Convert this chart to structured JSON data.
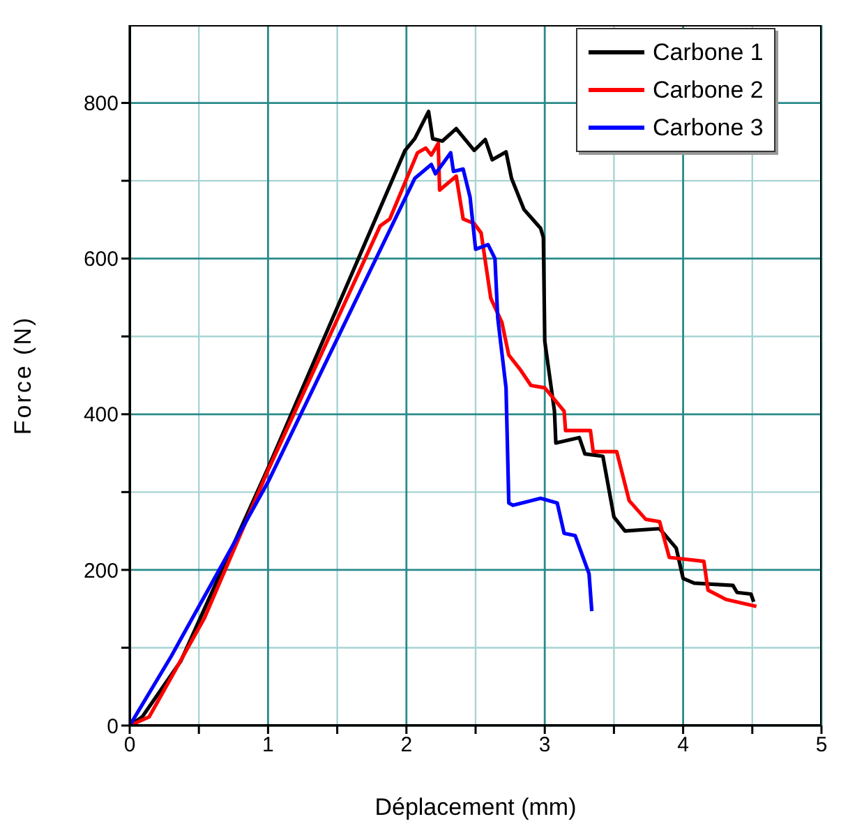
{
  "chart_data": {
    "type": "line",
    "xlabel": "Déplacement (mm)",
    "ylabel": "Force (N)",
    "xlim": [
      0,
      5
    ],
    "ylim": [
      0,
      900
    ],
    "xticks": [
      0,
      {
        "value": 0.5,
        "label": null
      },
      1,
      {
        "value": 1.5,
        "label": null
      },
      2,
      {
        "value": 2.5,
        "label": null
      },
      3,
      {
        "value": 3.5,
        "label": null
      },
      4,
      {
        "value": 4.5,
        "label": null
      },
      5
    ],
    "yticks": [
      0,
      {
        "value": 100,
        "label": null
      },
      200,
      {
        "value": 300,
        "label": null
      },
      400,
      {
        "value": 500,
        "label": null
      },
      600,
      {
        "value": 700,
        "label": null
      },
      800
    ],
    "grid": true,
    "legend": "top right",
    "marker": "none",
    "line_style": "solid",
    "series": [
      {
        "name": "Carbone 1",
        "color": "#000000",
        "x": [
          0,
          0.09,
          0.37,
          1.0,
          1.99,
          2.06,
          2.16,
          2.19,
          2.26,
          2.36,
          2.42,
          2.49,
          2.57,
          2.62,
          2.72,
          2.76,
          2.85,
          2.97,
          2.99,
          3.0,
          3.07,
          3.08,
          3.25,
          3.29,
          3.42,
          3.5,
          3.58,
          3.83,
          3.95,
          4.0,
          4.08,
          4.36,
          4.39,
          4.49,
          4.51
        ],
        "values": [
          0,
          11,
          83,
          331,
          739,
          754,
          789,
          754,
          751,
          767,
          754,
          739,
          753,
          727,
          737,
          703,
          663,
          639,
          627,
          494,
          404,
          363,
          370,
          349,
          346,
          268,
          250,
          253,
          228,
          189,
          183,
          180,
          171,
          169,
          159
        ]
      },
      {
        "name": "Carbone 2",
        "color": "#ff0000",
        "x": [
          0,
          0.14,
          0.54,
          1.0,
          1.81,
          1.88,
          2.08,
          2.14,
          2.18,
          2.23,
          2.24,
          2.36,
          2.41,
          2.49,
          2.54,
          2.61,
          2.69,
          2.74,
          2.82,
          2.9,
          3.0,
          3.14,
          3.15,
          3.33,
          3.35,
          3.52,
          3.61,
          3.73,
          3.83,
          3.9,
          4.15,
          4.18,
          4.31,
          4.53
        ],
        "values": [
          0,
          11,
          138,
          328,
          642,
          651,
          736,
          742,
          733,
          748,
          688,
          706,
          651,
          645,
          633,
          549,
          518,
          476,
          458,
          437,
          434,
          404,
          379,
          379,
          352,
          352,
          289,
          265,
          262,
          216,
          211,
          174,
          162,
          153
        ]
      },
      {
        "name": "Carbone 3",
        "color": "#0000ff",
        "x": [
          0,
          0.3,
          1.0,
          2.06,
          2.18,
          2.21,
          2.32,
          2.34,
          2.41,
          2.46,
          2.5,
          2.59,
          2.64,
          2.66,
          2.72,
          2.74,
          2.77,
          2.97,
          3.09,
          3.14,
          3.22,
          3.32,
          3.34
        ],
        "values": [
          0,
          89,
          313,
          703,
          721,
          709,
          736,
          712,
          715,
          679,
          612,
          618,
          600,
          524,
          434,
          286,
          283,
          292,
          286,
          247,
          244,
          195,
          147
        ]
      }
    ]
  }
}
